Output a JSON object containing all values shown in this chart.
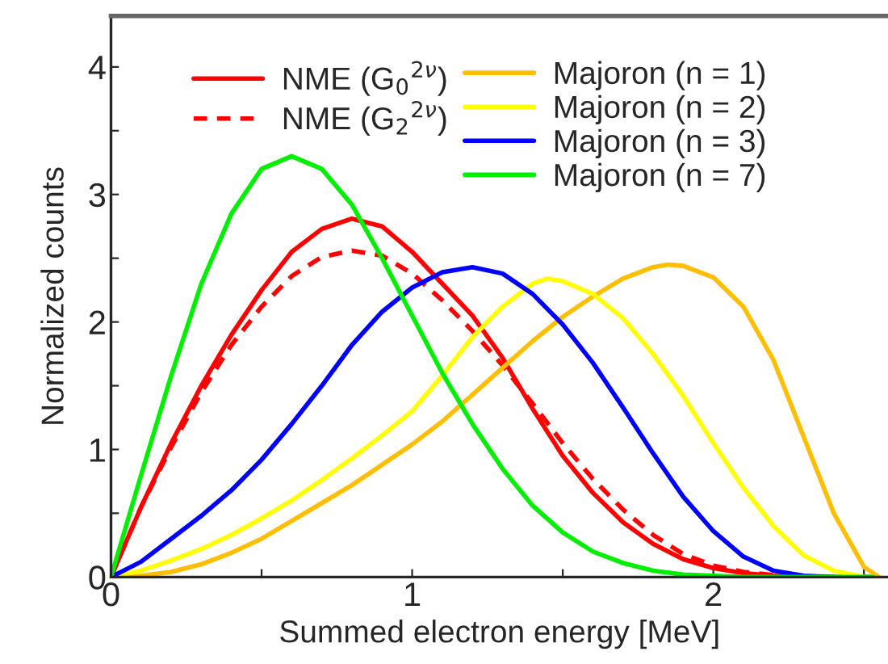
{
  "chart_data": {
    "type": "line",
    "xlabel": "Summed electron energy [MeV]",
    "ylabel": "Normalized counts",
    "xlim": [
      0,
      2.58
    ],
    "xticks": [
      0,
      {
        "value": 0.5,
        "label": null
      },
      1,
      {
        "value": 1.5,
        "label": null
      },
      2,
      {
        "value": 2.5,
        "label": null
      }
    ],
    "ylim": [
      0,
      4.4
    ],
    "yticks": [
      0,
      {
        "value": 0.5,
        "label": null
      },
      1,
      {
        "value": 1.5,
        "label": null
      },
      2,
      {
        "value": 2.5,
        "label": null
      },
      3,
      {
        "value": 3.5,
        "label": null
      },
      4
    ],
    "grid": false,
    "legend": "top",
    "marker": "none",
    "series": [
      {
        "name": "NME (G$_{0}$$^{2ν}$)",
        "color": "#ff0000",
        "line_style": "solid",
        "x": [
          0,
          0.1,
          0.2,
          0.3,
          0.4,
          0.5,
          0.6,
          0.7,
          0.8,
          0.9,
          1.0,
          1.1,
          1.2,
          1.3,
          1.4,
          1.5,
          1.6,
          1.7,
          1.8,
          1.9,
          2.0,
          2.1,
          2.2,
          2.3,
          2.53
        ],
        "values": [
          0,
          0.55,
          1.05,
          1.5,
          1.9,
          2.25,
          2.55,
          2.73,
          2.81,
          2.75,
          2.55,
          2.3,
          2.05,
          1.72,
          1.32,
          0.95,
          0.66,
          0.43,
          0.26,
          0.14,
          0.07,
          0.03,
          0.01,
          0,
          0
        ]
      },
      {
        "name": "NME (G$_{2}$$^{2ν}$)",
        "color": "#ff0000",
        "line_style": "dashed",
        "x": [
          0,
          0.1,
          0.2,
          0.3,
          0.4,
          0.5,
          0.6,
          0.7,
          0.8,
          0.9,
          1.0,
          1.1,
          1.2,
          1.3,
          1.4,
          1.5,
          1.6,
          1.7,
          1.8,
          1.9,
          2.0,
          2.1,
          2.2,
          2.3
        ],
        "values": [
          0,
          0.55,
          1.02,
          1.45,
          1.82,
          2.12,
          2.36,
          2.51,
          2.56,
          2.52,
          2.38,
          2.17,
          1.93,
          1.66,
          1.36,
          1.05,
          0.77,
          0.53,
          0.33,
          0.18,
          0.09,
          0.04,
          0.015,
          0
        ]
      },
      {
        "name": "Majoron (n = 1)",
        "color": "#ffbf00",
        "line_style": "solid",
        "x": [
          0,
          0.1,
          0.2,
          0.3,
          0.4,
          0.5,
          0.6,
          0.7,
          0.8,
          0.9,
          1.0,
          1.1,
          1.2,
          1.3,
          1.4,
          1.5,
          1.6,
          1.7,
          1.8,
          1.85,
          1.9,
          2.0,
          2.1,
          2.2,
          2.3,
          2.4,
          2.5,
          2.55
        ],
        "values": [
          0,
          0.01,
          0.04,
          0.1,
          0.19,
          0.3,
          0.44,
          0.58,
          0.72,
          0.88,
          1.04,
          1.22,
          1.43,
          1.64,
          1.85,
          2.04,
          2.2,
          2.34,
          2.43,
          2.45,
          2.44,
          2.35,
          2.12,
          1.7,
          1.1,
          0.5,
          0.08,
          0
        ]
      },
      {
        "name": "Majoron (n = 2)",
        "color": "#ffff00",
        "line_style": "solid",
        "x": [
          0,
          0.1,
          0.2,
          0.3,
          0.4,
          0.5,
          0.6,
          0.7,
          0.8,
          0.9,
          1.0,
          1.1,
          1.2,
          1.3,
          1.4,
          1.45,
          1.5,
          1.6,
          1.7,
          1.8,
          1.9,
          2.0,
          2.1,
          2.2,
          2.3,
          2.4,
          2.5
        ],
        "values": [
          0,
          0.05,
          0.13,
          0.22,
          0.33,
          0.46,
          0.6,
          0.76,
          0.93,
          1.11,
          1.3,
          1.58,
          1.88,
          2.12,
          2.3,
          2.34,
          2.32,
          2.22,
          2.03,
          1.75,
          1.42,
          1.05,
          0.7,
          0.4,
          0.17,
          0.05,
          0
        ]
      },
      {
        "name": "Majoron (n = 3)",
        "color": "#0000ff",
        "line_style": "solid",
        "x": [
          0,
          0.1,
          0.2,
          0.3,
          0.4,
          0.5,
          0.6,
          0.7,
          0.8,
          0.9,
          1.0,
          1.1,
          1.2,
          1.3,
          1.4,
          1.5,
          1.6,
          1.7,
          1.8,
          1.9,
          2.0,
          2.1,
          2.2,
          2.3,
          2.4
        ],
        "values": [
          0,
          0.12,
          0.3,
          0.48,
          0.68,
          0.92,
          1.2,
          1.5,
          1.82,
          2.08,
          2.27,
          2.39,
          2.43,
          2.38,
          2.22,
          1.98,
          1.68,
          1.33,
          0.97,
          0.63,
          0.36,
          0.16,
          0.05,
          0.01,
          0
        ]
      },
      {
        "name": "Majoron (n = 7)",
        "color": "#00ee00",
        "line_style": "solid",
        "x": [
          0,
          0.1,
          0.2,
          0.3,
          0.4,
          0.5,
          0.6,
          0.7,
          0.8,
          0.9,
          1.0,
          1.1,
          1.2,
          1.3,
          1.4,
          1.5,
          1.6,
          1.7,
          1.8,
          1.9,
          2.0,
          2.1,
          2.53
        ],
        "values": [
          0,
          0.8,
          1.58,
          2.3,
          2.85,
          3.2,
          3.3,
          3.2,
          2.92,
          2.5,
          2.05,
          1.6,
          1.2,
          0.85,
          0.56,
          0.35,
          0.2,
          0.11,
          0.05,
          0.02,
          0.01,
          0,
          0
        ]
      }
    ]
  }
}
